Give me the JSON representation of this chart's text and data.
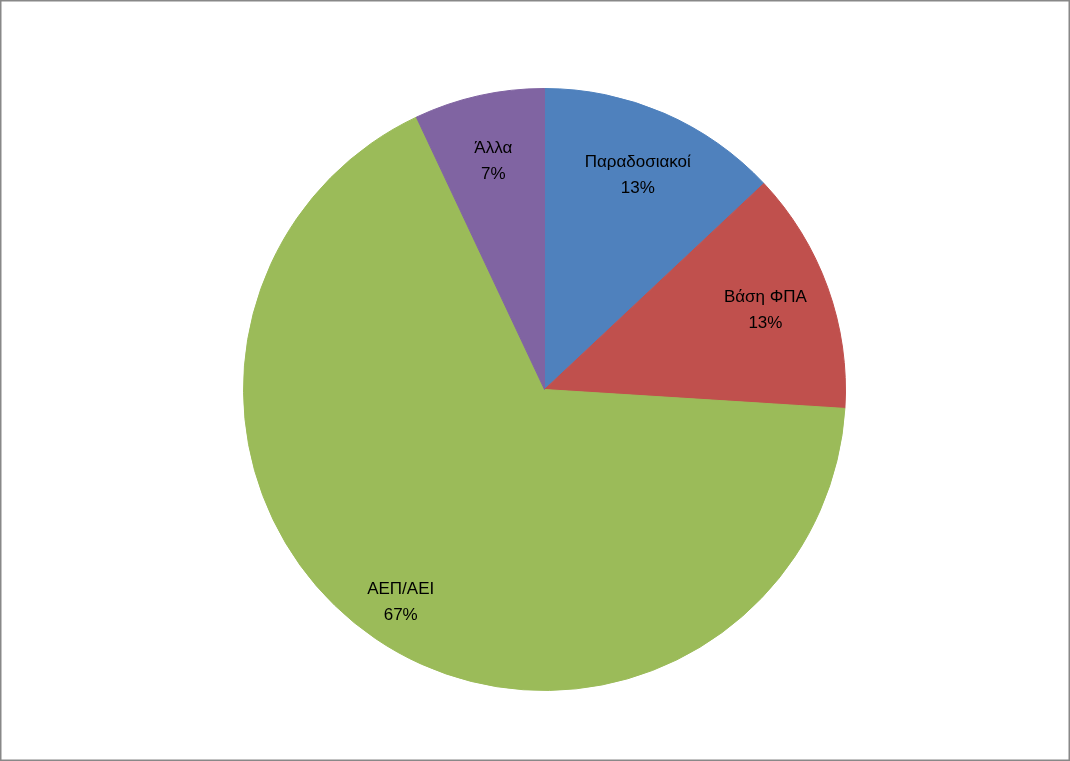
{
  "chart_data": {
    "type": "pie",
    "categories": [
      "Παραδοσιακοί",
      "Βάση ΦΠΑ",
      "ΑΕΠ/ΑΕΙ",
      "Άλλα"
    ],
    "values": [
      13,
      13,
      67,
      7
    ],
    "colors": [
      "#4f81bd",
      "#c0504d",
      "#9bbb59",
      "#8064a2"
    ],
    "value_labels": [
      "13%",
      "13%",
      "67%",
      "7%"
    ],
    "legend": false
  }
}
